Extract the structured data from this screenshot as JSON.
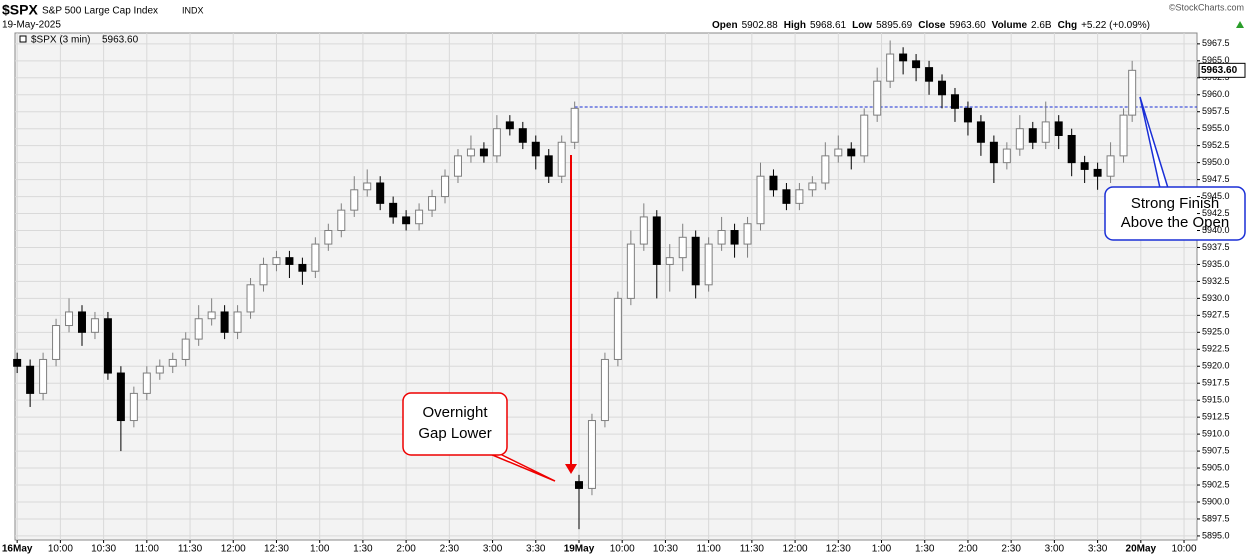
{
  "chart_data": {
    "type": "candlestick",
    "symbol": "$SPX",
    "name": "S&P 500 Large Cap Index",
    "exchange": "INDX",
    "date": "19-May-2025",
    "stats": [
      {
        "label": "Open",
        "value": "5902.88"
      },
      {
        "label": "High",
        "value": "5968.61"
      },
      {
        "label": "Low",
        "value": "5895.69"
      },
      {
        "label": "Close",
        "value": "5963.60"
      },
      {
        "label": "Volume",
        "value": "2.6B"
      },
      {
        "label": "Chg",
        "value": "+5.22 (+0.09%)"
      }
    ],
    "credit": "©StockCharts.com",
    "last_price": {
      "value": 5963.6,
      "label": "5963.60"
    },
    "open_line": 5958.2,
    "annotations": [
      {
        "lines": [
          "Overnight",
          "Gap Lower"
        ]
      },
      {
        "lines": [
          "Strong Finish",
          "Above the Open"
        ]
      }
    ],
    "xlim": [
      -0.5,
      273
    ],
    "ylim": [
      5894.4,
      5969.1
    ],
    "grid": true,
    "xticks": [
      {
        "value": 0,
        "label": "16May"
      },
      {
        "value": 10,
        "label": "10:00"
      },
      {
        "value": 20,
        "label": "10:30"
      },
      {
        "value": 30,
        "label": "11:00"
      },
      {
        "value": 40,
        "label": "11:30"
      },
      {
        "value": 50,
        "label": "12:00"
      },
      {
        "value": 60,
        "label": "12:30"
      },
      {
        "value": 70,
        "label": "1:00"
      },
      {
        "value": 80,
        "label": "1:30"
      },
      {
        "value": 90,
        "label": "2:00"
      },
      {
        "value": 100,
        "label": "2:30"
      },
      {
        "value": 110,
        "label": "3:00"
      },
      {
        "value": 120,
        "label": "3:30"
      },
      {
        "value": 130,
        "label": "19May"
      },
      {
        "value": 140,
        "label": "10:00"
      },
      {
        "value": 150,
        "label": "10:30"
      },
      {
        "value": 160,
        "label": "11:00"
      },
      {
        "value": 170,
        "label": "11:30"
      },
      {
        "value": 180,
        "label": "12:00"
      },
      {
        "value": 190,
        "label": "12:30"
      },
      {
        "value": 200,
        "label": "1:00"
      },
      {
        "value": 210,
        "label": "1:30"
      },
      {
        "value": 220,
        "label": "2:00"
      },
      {
        "value": 230,
        "label": "2:30"
      },
      {
        "value": 240,
        "label": "3:00"
      },
      {
        "value": 250,
        "label": "3:30"
      },
      {
        "value": 260,
        "label": "20May"
      },
      {
        "value": 270,
        "label": "10:00"
      }
    ],
    "yticks": [
      {
        "value": 5895,
        "label": "5895.0"
      },
      {
        "value": 5897.5,
        "label": "5897.5"
      },
      {
        "value": 5900,
        "label": "5900.0"
      },
      {
        "value": 5902.5,
        "label": "5902.5"
      },
      {
        "value": 5905,
        "label": "5905.0"
      },
      {
        "value": 5907.5,
        "label": "5907.5"
      },
      {
        "value": 5910,
        "label": "5910.0"
      },
      {
        "value": 5912.5,
        "label": "5912.5"
      },
      {
        "value": 5915,
        "label": "5915.0"
      },
      {
        "value": 5917.5,
        "label": "5917.5"
      },
      {
        "value": 5920,
        "label": "5920.0"
      },
      {
        "value": 5922.5,
        "label": "5922.5"
      },
      {
        "value": 5925,
        "label": "5925.0"
      },
      {
        "value": 5927.5,
        "label": "5927.5"
      },
      {
        "value": 5930,
        "label": "5930.0"
      },
      {
        "value": 5932.5,
        "label": "5932.5"
      },
      {
        "value": 5935,
        "label": "5935.0"
      },
      {
        "value": 5937.5,
        "label": "5937.5"
      },
      {
        "value": 5940,
        "label": "5940.0"
      },
      {
        "value": 5942.5,
        "label": "5942.5"
      },
      {
        "value": 5945,
        "label": "5945.0"
      },
      {
        "value": 5947.5,
        "label": "5947.5"
      },
      {
        "value": 5950,
        "label": "5950.0"
      },
      {
        "value": 5952.5,
        "label": "5952.5"
      },
      {
        "value": 5955,
        "label": "5955.0"
      },
      {
        "value": 5957.5,
        "label": "5957.5"
      },
      {
        "value": 5960,
        "label": "5960.0"
      },
      {
        "value": 5962.5,
        "label": "5962.5"
      },
      {
        "value": 5965,
        "label": "5965.0"
      },
      {
        "value": 5967.5,
        "label": "5967.5"
      }
    ],
    "x": [
      0,
      3,
      6,
      9,
      12,
      15,
      18,
      21,
      24,
      27,
      30,
      33,
      36,
      39,
      42,
      45,
      48,
      51,
      54,
      57,
      60,
      63,
      66,
      69,
      72,
      75,
      78,
      81,
      84,
      87,
      90,
      93,
      96,
      99,
      102,
      105,
      108,
      111,
      114,
      117,
      120,
      123,
      126,
      129,
      130,
      133,
      136,
      139,
      142,
      145,
      148,
      151,
      154,
      157,
      160,
      163,
      166,
      169,
      172,
      175,
      178,
      181,
      184,
      187,
      190,
      193,
      196,
      199,
      202,
      205,
      208,
      211,
      214,
      217,
      220,
      223,
      226,
      229,
      232,
      235,
      238,
      241,
      244,
      247,
      250,
      253,
      256,
      258
    ],
    "series": [
      {
        "name": "$SPX (3 min)",
        "up_color": "#ffffff",
        "down_color": "#000000",
        "outline": "#7f7f7f",
        "open": [
          5921,
          5920,
          5916,
          5921,
          5926,
          5928,
          5925,
          5927,
          5919,
          5912,
          5916,
          5919,
          5920,
          5921,
          5924,
          5927,
          5928,
          5925,
          5928,
          5932,
          5935,
          5936,
          5935,
          5934,
          5938,
          5940,
          5943,
          5946,
          5947,
          5944,
          5942,
          5941,
          5943,
          5945,
          5948,
          5951,
          5952,
          5951,
          5956,
          5955,
          5953,
          5951,
          5948,
          5953,
          5903,
          5902,
          5912,
          5921,
          5930,
          5938,
          5942,
          5935,
          5936,
          5939,
          5932,
          5938,
          5940,
          5938,
          5941,
          5948,
          5946,
          5944,
          5946,
          5947,
          5951,
          5952,
          5951,
          5957,
          5962,
          5966,
          5965,
          5964,
          5962,
          5960,
          5958,
          5956,
          5953,
          5950,
          5952,
          5955,
          5953,
          5956,
          5954,
          5950,
          5949,
          5948,
          5951,
          5957
        ],
        "high": [
          5922,
          5921,
          5922,
          5927,
          5930,
          5929,
          5928,
          5928,
          5920,
          5917,
          5920,
          5921,
          5922,
          5925,
          5929,
          5930,
          5929,
          5929,
          5933,
          5936,
          5937,
          5937,
          5936,
          5939,
          5941,
          5944,
          5948,
          5949,
          5948,
          5945,
          5943,
          5944,
          5946,
          5949,
          5952,
          5954,
          5953,
          5957,
          5957,
          5956,
          5954,
          5952,
          5954,
          5959,
          5904,
          5913,
          5922,
          5931,
          5940,
          5944,
          5943,
          5938,
          5941,
          5940,
          5939,
          5942,
          5941,
          5942,
          5950,
          5949,
          5947,
          5947,
          5948,
          5953,
          5954,
          5953,
          5958,
          5964,
          5968,
          5967,
          5966,
          5965,
          5963,
          5961,
          5959,
          5957,
          5954,
          5953,
          5957,
          5956,
          5959,
          5957,
          5955,
          5951,
          5950,
          5953,
          5958,
          5965
        ],
        "low": [
          5919,
          5914,
          5915,
          5920,
          5925,
          5923,
          5924,
          5918,
          5907.5,
          5911,
          5915,
          5918,
          5919,
          5920,
          5923,
          5926,
          5924,
          5924,
          5927,
          5931,
          5934,
          5933,
          5932,
          5933,
          5937,
          5939,
          5942,
          5945,
          5943,
          5941,
          5940,
          5940,
          5942,
          5944,
          5947,
          5950,
          5950,
          5950,
          5954,
          5952,
          5949,
          5947,
          5947,
          5952,
          5896,
          5901,
          5911,
          5920,
          5929,
          5937,
          5930,
          5931,
          5934,
          5930,
          5931,
          5937,
          5936,
          5936,
          5940,
          5945,
          5943,
          5943,
          5945,
          5946,
          5950,
          5949,
          5950,
          5956,
          5961,
          5963,
          5962,
          5960,
          5958,
          5956,
          5954,
          5951,
          5947,
          5949,
          5951,
          5952,
          5952,
          5952,
          5948,
          5947,
          5946,
          5947,
          5950,
          5956
        ],
        "close": [
          5920,
          5916,
          5921,
          5926,
          5928,
          5925,
          5927,
          5919,
          5912,
          5916,
          5919,
          5920,
          5921,
          5924,
          5927,
          5928,
          5925,
          5928,
          5932,
          5935,
          5936,
          5935,
          5934,
          5938,
          5940,
          5943,
          5946,
          5947,
          5944,
          5942,
          5941,
          5943,
          5945,
          5948,
          5951,
          5952,
          5951,
          5955,
          5955,
          5953,
          5951,
          5948,
          5953,
          5958,
          5902,
          5912,
          5921,
          5930,
          5938,
          5942,
          5935,
          5936,
          5939,
          5932,
          5938,
          5940,
          5938,
          5941,
          5948,
          5946,
          5944,
          5946,
          5947,
          5951,
          5952,
          5951,
          5957,
          5962,
          5966,
          5965,
          5964,
          5962,
          5960,
          5958,
          5956,
          5953,
          5950,
          5952,
          5955,
          5953,
          5956,
          5954,
          5950,
          5949,
          5948,
          5951,
          5957,
          5963.6
        ]
      }
    ]
  }
}
